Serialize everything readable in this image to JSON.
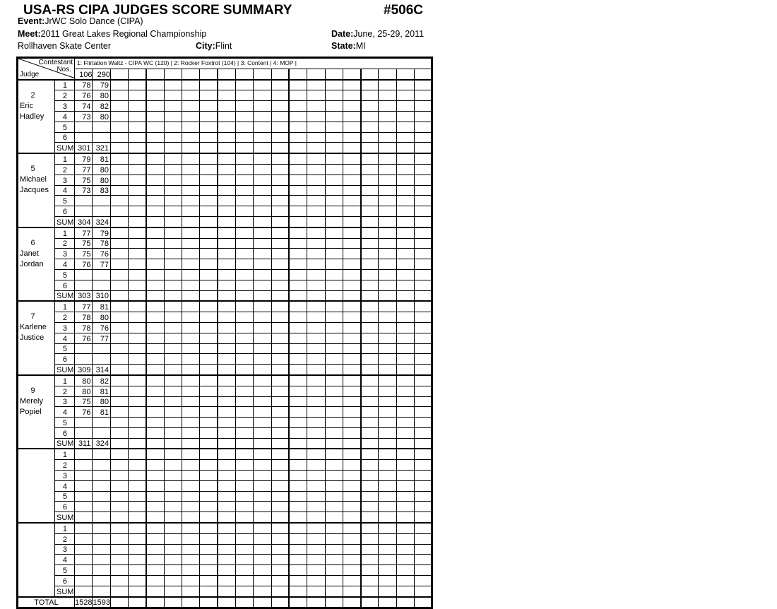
{
  "header": {
    "title": "USA-RS CIPA JUDGES SCORE SUMMARY",
    "code": "#506C",
    "event_label": "Event:",
    "event": "JrWC Solo Dance   (CIPA)",
    "meet_label": "Meet:",
    "meet": "2011 Great Lakes Regional Championship",
    "date_label": "Date:",
    "date": "June, 25-29, 2011",
    "venue": "Rollhaven Skate Center",
    "city_label": "City:",
    "city": "Flint",
    "state_label": "State:",
    "state": "MI"
  },
  "table": {
    "contestant_label": "Contestant",
    "nos_label": "Nos.",
    "judge_label": "Judge",
    "events_line": "1: Flirtation Waltz - CIPA WC (120) | 2: Rocker Foxtrot (104) | 3: Content | 4: MOP |",
    "contestants": [
      "106",
      "290"
    ],
    "row_labels": [
      "1",
      "2",
      "3",
      "4",
      "5",
      "6",
      "SUM"
    ],
    "judges": [
      {
        "number": "2",
        "first": "Eric",
        "last": "Hadley",
        "scores": [
          [
            "78",
            "79"
          ],
          [
            "76",
            "80"
          ],
          [
            "74",
            "82"
          ],
          [
            "73",
            "80"
          ],
          [
            "",
            ""
          ],
          [
            "",
            ""
          ],
          [
            "301",
            "321"
          ]
        ]
      },
      {
        "number": "5",
        "first": "Michael",
        "last": "Jacques",
        "scores": [
          [
            "79",
            "81"
          ],
          [
            "77",
            "80"
          ],
          [
            "75",
            "80"
          ],
          [
            "73",
            "83"
          ],
          [
            "",
            ""
          ],
          [
            "",
            ""
          ],
          [
            "304",
            "324"
          ]
        ]
      },
      {
        "number": "6",
        "first": "Janet",
        "last": "Jordan",
        "scores": [
          [
            "77",
            "79"
          ],
          [
            "75",
            "78"
          ],
          [
            "75",
            "76"
          ],
          [
            "76",
            "77"
          ],
          [
            "",
            ""
          ],
          [
            "",
            ""
          ],
          [
            "303",
            "310"
          ]
        ]
      },
      {
        "number": "7",
        "first": "Karlene",
        "last": "Justice",
        "scores": [
          [
            "77",
            "81"
          ],
          [
            "78",
            "80"
          ],
          [
            "78",
            "76"
          ],
          [
            "76",
            "77"
          ],
          [
            "",
            ""
          ],
          [
            "",
            ""
          ],
          [
            "309",
            "314"
          ]
        ]
      },
      {
        "number": "9",
        "first": "Merely",
        "last": "Popiel",
        "scores": [
          [
            "80",
            "82"
          ],
          [
            "80",
            "81"
          ],
          [
            "75",
            "80"
          ],
          [
            "76",
            "81"
          ],
          [
            "",
            ""
          ],
          [
            "",
            ""
          ],
          [
            "311",
            "324"
          ]
        ]
      },
      {
        "number": "",
        "first": "",
        "last": "",
        "scores": []
      },
      {
        "number": "",
        "first": "",
        "last": "",
        "scores": []
      }
    ],
    "total_label": "TOTAL",
    "totals": [
      "1528",
      "1593"
    ]
  }
}
